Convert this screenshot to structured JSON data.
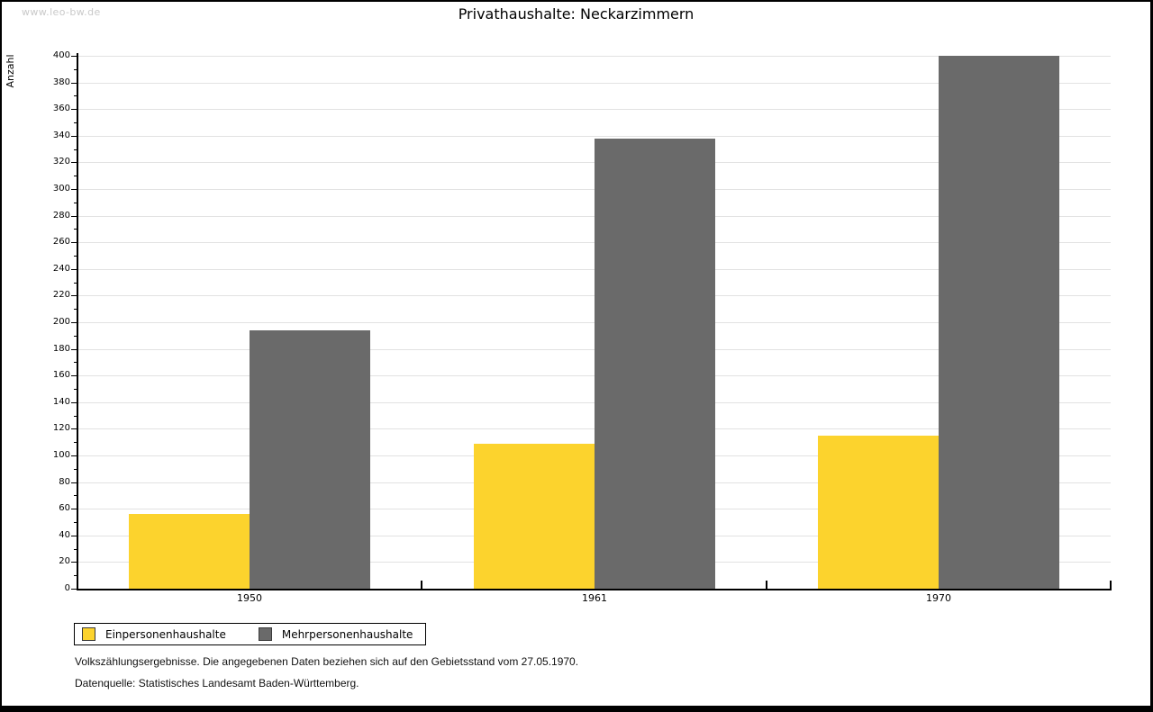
{
  "watermark": "www.leo-bw.de",
  "title": "Privathaushalte: Neckarzimmern",
  "chart_data": {
    "type": "bar",
    "title": "Privathaushalte: Neckarzimmern",
    "xlabel": "",
    "ylabel": "Anzahl",
    "categories": [
      "1950",
      "1961",
      "1970"
    ],
    "series": [
      {
        "name": "Einpersonenhaushalte",
        "color": "#fcd32d",
        "values": [
          56,
          109,
          115
        ]
      },
      {
        "name": "Mehrpersonenhaushalte",
        "color": "#6a6a6a",
        "values": [
          194,
          338,
          400
        ]
      }
    ],
    "ylim": [
      0,
      400
    ],
    "ytick_step": 20,
    "yticks": [
      0,
      20,
      40,
      60,
      80,
      100,
      120,
      140,
      160,
      180,
      200,
      220,
      240,
      260,
      280,
      300,
      320,
      340,
      360,
      380,
      400
    ],
    "minor_tick_step": 10,
    "grid": true,
    "gridline_color": "#e2e2e2",
    "legend_position": "bottom-left"
  },
  "footer": {
    "line1": "Volkszählungsergebnisse. Die angegebenen Daten beziehen sich auf den Gebietsstand vom 27.05.1970.",
    "line2": "Datenquelle: Statistisches Landesamt Baden-Württemberg."
  }
}
